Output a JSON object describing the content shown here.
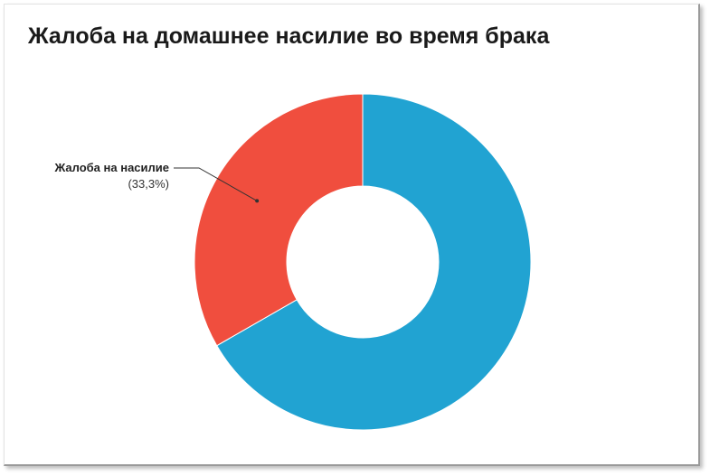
{
  "chart_data": {
    "type": "pie",
    "donut": true,
    "title": "Жалоба на домашнее насилие во время брака",
    "slices": [
      {
        "label": "",
        "value": 66.7,
        "display": "",
        "color": "#21a3d2"
      },
      {
        "label": "Жалоба на насилие",
        "value": 33.3,
        "display": "(33,3%)",
        "color": "#f04e3e"
      }
    ],
    "start_angle_deg": 0,
    "direction": "clockwise"
  }
}
